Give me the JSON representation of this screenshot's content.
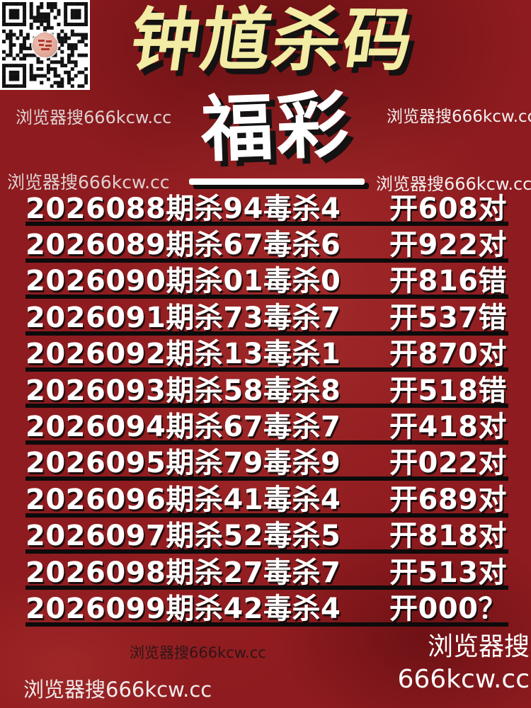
{
  "poster": {
    "title": "钟馗杀码",
    "subtitle": "福彩",
    "watermark": "浏览器搜666kcw.cc",
    "watermark_big_line1": "浏览器搜",
    "watermark_big_line2": "666kcw.cc"
  },
  "colors": {
    "background_red": "#8e1b1f",
    "title_yellow": "#f2eca4",
    "text_white": "#ffffff",
    "divider_black": "#0d0b0b",
    "qr_logo_pink": "#dfa293"
  },
  "table": {
    "rows": [
      {
        "period": "2026088期杀94毒杀4",
        "result": "开608对"
      },
      {
        "period": "2026089期杀67毒杀6",
        "result": "开922对"
      },
      {
        "period": "2026090期杀01毒杀0",
        "result": "开816错"
      },
      {
        "period": "2026091期杀73毒杀7",
        "result": "开537错"
      },
      {
        "period": "2026092期杀13毒杀1",
        "result": "开870对"
      },
      {
        "period": "2026093期杀58毒杀8",
        "result": "开518错"
      },
      {
        "period": "2026094期杀67毒杀7",
        "result": "开418对"
      },
      {
        "period": "2026095期杀79毒杀9",
        "result": "开022对"
      },
      {
        "period": "2026096期杀41毒杀4",
        "result": "开689对"
      },
      {
        "period": "2026097期杀52毒杀5",
        "result": "开818对"
      },
      {
        "period": "2026098期杀27毒杀7",
        "result": "开513对"
      },
      {
        "period": "2026099期杀42毒杀4",
        "result": "开000？"
      }
    ]
  }
}
